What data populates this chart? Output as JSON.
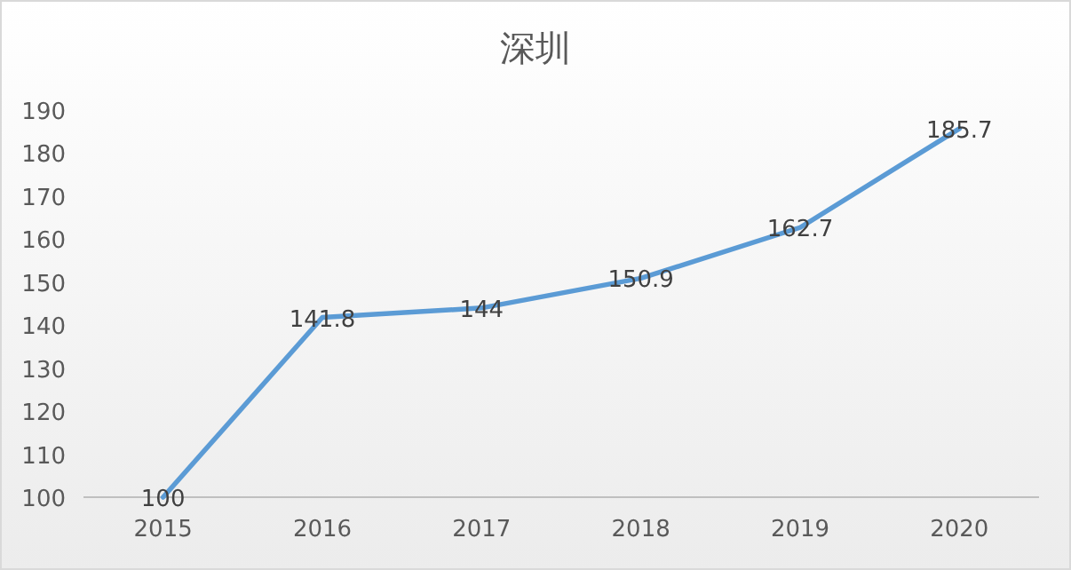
{
  "chart_data": {
    "type": "line",
    "title": "深圳",
    "categories": [
      "2015",
      "2016",
      "2017",
      "2018",
      "2019",
      "2020"
    ],
    "series": [
      {
        "color": "#5b9bd5",
        "values": [
          100,
          141.8,
          144,
          150.9,
          162.7,
          185.7
        ]
      }
    ],
    "ylim": [
      100,
      190
    ],
    "yticks": [
      100,
      110,
      120,
      130,
      140,
      150,
      160,
      170,
      180,
      190
    ],
    "data_labels": true,
    "grid": false,
    "marker": "none"
  }
}
